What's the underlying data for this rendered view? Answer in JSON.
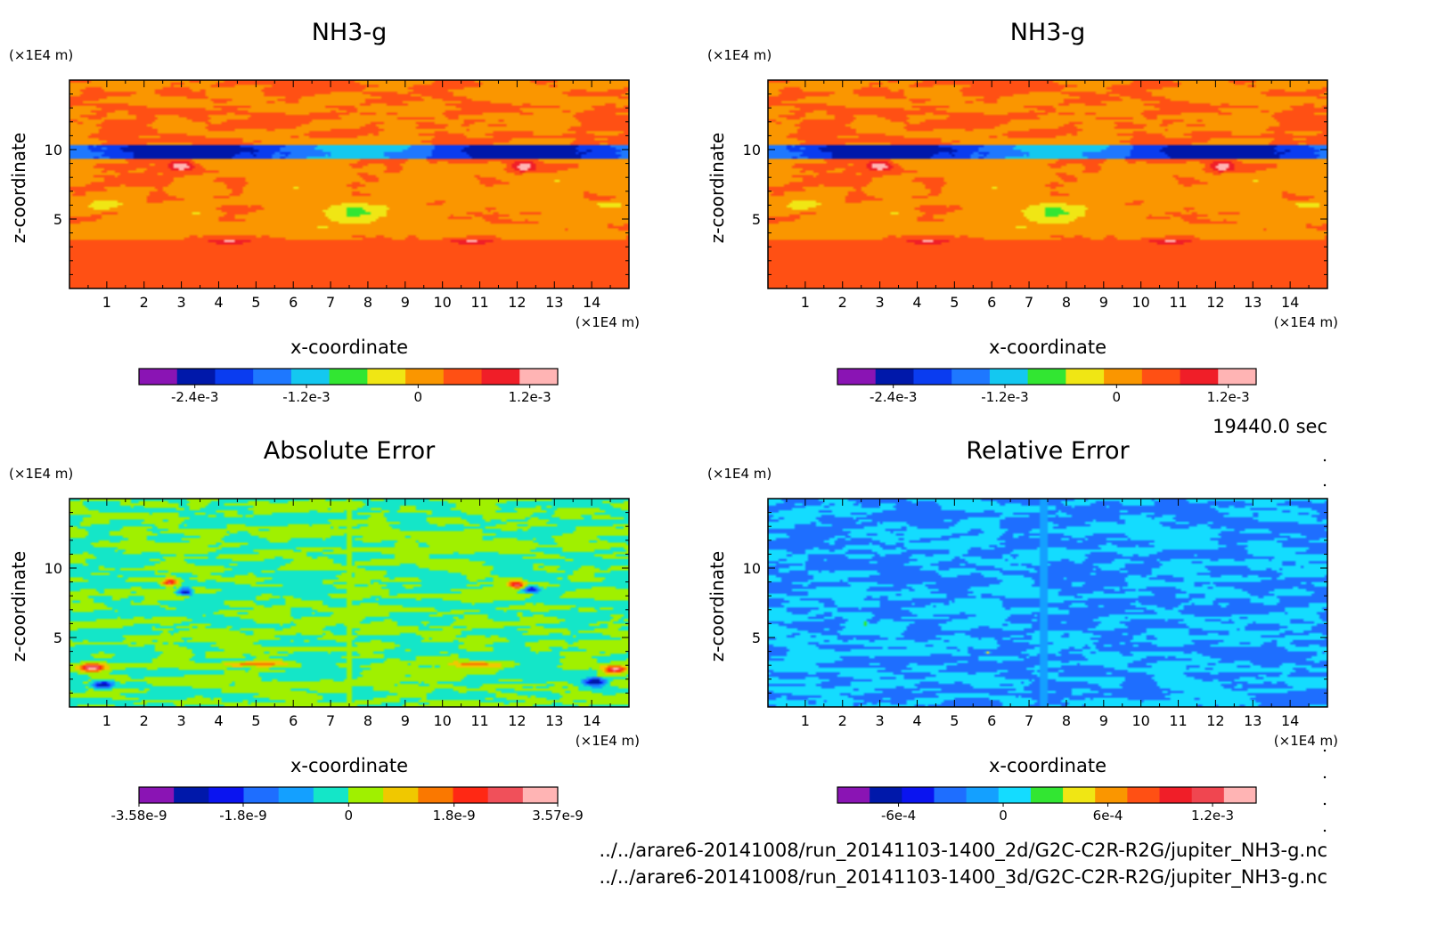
{
  "time_label": "19440.0 sec",
  "file_paths": [
    "../../arare6-20141008/run_20141103-1400_2d/G2C-C2R-R2G/jupiter_NH3-g.nc",
    "../../arare6-20141008/run_20141103-1400_3d/G2C-C2R-R2G/jupiter_NH3-g.nc"
  ],
  "chart_data": [
    {
      "type": "heatmap",
      "title": "NH3-g",
      "xlabel": "x-coordinate",
      "ylabel": "z-coordinate",
      "x_unit": "(×1E4 m)",
      "y_unit": "(×1E4 m)",
      "xlim": [
        0,
        15
      ],
      "ylim": [
        0,
        15
      ],
      "x_ticks": [
        1,
        2,
        3,
        4,
        5,
        6,
        7,
        8,
        9,
        10,
        11,
        12,
        13,
        14
      ],
      "y_ticks": [
        5,
        10
      ],
      "colorbar": {
        "colors": [
          "#8a14b4",
          "#0018aa",
          "#0a3cf0",
          "#1e78ff",
          "#14c8f0",
          "#32e632",
          "#f0e614",
          "#fa9600",
          "#ff5014",
          "#f01e28",
          "#ffb4b4"
        ],
        "tick_labels": [
          "-2.4e-3",
          "-1.2e-3",
          "0",
          "1.2e-3"
        ],
        "tick_values": [
          -0.0024,
          -0.0012,
          0,
          0.0012
        ],
        "range": [
          -0.003,
          0.0015
        ]
      },
      "field": "nh3"
    },
    {
      "type": "heatmap",
      "title": "NH3-g",
      "xlabel": "x-coordinate",
      "ylabel": "z-coordinate",
      "x_unit": "(×1E4 m)",
      "y_unit": "(×1E4 m)",
      "xlim": [
        0,
        15
      ],
      "ylim": [
        0,
        15
      ],
      "x_ticks": [
        1,
        2,
        3,
        4,
        5,
        6,
        7,
        8,
        9,
        10,
        11,
        12,
        13,
        14
      ],
      "y_ticks": [
        5,
        10
      ],
      "colorbar": {
        "colors": [
          "#8a14b4",
          "#0018aa",
          "#0a3cf0",
          "#1e78ff",
          "#14c8f0",
          "#32e632",
          "#f0e614",
          "#fa9600",
          "#ff5014",
          "#f01e28",
          "#ffb4b4"
        ],
        "tick_labels": [
          "-2.4e-3",
          "-1.2e-3",
          "0",
          "1.2e-3"
        ],
        "tick_values": [
          -0.0024,
          -0.0012,
          0,
          0.0012
        ],
        "range": [
          -0.003,
          0.0015
        ]
      },
      "field": "nh3"
    },
    {
      "type": "heatmap",
      "title": "Absolute Error",
      "xlabel": "x-coordinate",
      "ylabel": "z-coordinate",
      "x_unit": "(×1E4 m)",
      "y_unit": "(×1E4 m)",
      "xlim": [
        0,
        15
      ],
      "ylim": [
        0,
        15
      ],
      "x_ticks": [
        1,
        2,
        3,
        4,
        5,
        6,
        7,
        8,
        9,
        10,
        11,
        12,
        13,
        14
      ],
      "y_ticks": [
        5,
        10
      ],
      "colorbar": {
        "colors": [
          "#8a14b4",
          "#0018aa",
          "#0a14f0",
          "#1e6eff",
          "#14a0ff",
          "#14e6c8",
          "#a0f000",
          "#f0c800",
          "#fa7800",
          "#ff2814",
          "#f0505a",
          "#ffb4b4"
        ],
        "tick_labels": [
          "-3.58e-9",
          "-1.8e-9",
          "0",
          "1.8e-9",
          "3.57e-9"
        ],
        "tick_values": [
          -3.58e-09,
          -1.8e-09,
          0,
          1.8e-09,
          3.57e-09
        ],
        "range": [
          -3.58e-09,
          3.57e-09
        ]
      },
      "field": "abs"
    },
    {
      "type": "heatmap",
      "title": "Relative Error",
      "xlabel": "x-coordinate",
      "ylabel": "z-coordinate",
      "x_unit": "(×1E4 m)",
      "y_unit": "(×1E4 m)",
      "xlim": [
        0,
        15
      ],
      "ylim": [
        0,
        15
      ],
      "x_ticks": [
        1,
        2,
        3,
        4,
        5,
        6,
        7,
        8,
        9,
        10,
        11,
        12,
        13,
        14
      ],
      "y_ticks": [
        5,
        10
      ],
      "colorbar": {
        "colors": [
          "#8a14b4",
          "#0018aa",
          "#0a14f0",
          "#1e6eff",
          "#14a0ff",
          "#14dcff",
          "#32e632",
          "#f0e614",
          "#fa9600",
          "#ff5014",
          "#f01e28",
          "#f04650",
          "#ffb4b4"
        ],
        "tick_labels": [
          "-6e-4",
          "0",
          "6e-4",
          "1.2e-3"
        ],
        "tick_values": [
          -0.0006,
          0,
          0.0006,
          0.0012
        ],
        "range": [
          -0.00095,
          0.00145
        ]
      },
      "field": "rel"
    }
  ]
}
